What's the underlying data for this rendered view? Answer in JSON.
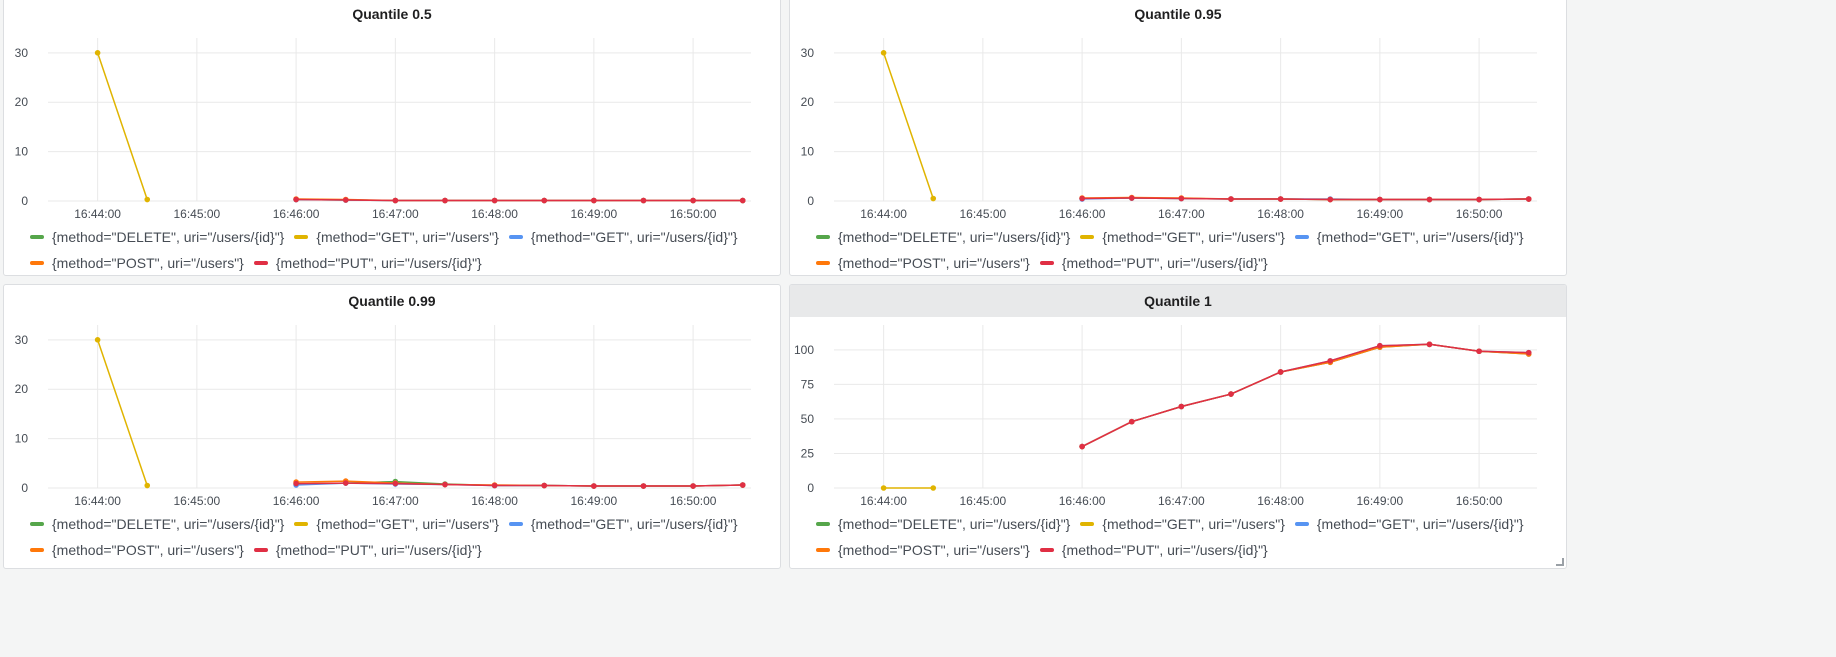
{
  "colors": {
    "series": [
      "#56a64b",
      "#e0b400",
      "#5794f2",
      "#ff780a",
      "#e02f44"
    ],
    "grid": "#e9e9e9",
    "text": "#464c54"
  },
  "legend_labels": [
    "{method=\"DELETE\", uri=\"/users/{id}\"}",
    "{method=\"GET\", uri=\"/users\"}",
    "{method=\"GET\", uri=\"/users/{id}\"}",
    "{method=\"POST\", uri=\"/users\"}",
    "{method=\"PUT\", uri=\"/users/{id}\"}"
  ],
  "chart_data": [
    {
      "type": "line",
      "title": "Quantile 0.5",
      "x_ticks": [
        "16:44:00",
        "16:45:00",
        "16:46:00",
        "16:47:00",
        "16:48:00",
        "16:49:00",
        "16:50:00"
      ],
      "x_range": [
        "16:43:30",
        "16:50:35"
      ],
      "y_ticks": [
        0,
        10,
        20,
        30
      ],
      "ylim": [
        0,
        33
      ],
      "series": [
        {
          "name": "{method=\"DELETE\", uri=\"/users/{id}\"}",
          "x": [
            "16:46:00",
            "16:46:30",
            "16:47:00",
            "16:47:30",
            "16:48:00",
            "16:48:30",
            "16:49:00",
            "16:49:30",
            "16:50:00",
            "16:50:30"
          ],
          "values": [
            0.3,
            0.2,
            0.1,
            0.1,
            0.1,
            0.1,
            0.1,
            0.1,
            0.1,
            0.1
          ]
        },
        {
          "name": "{method=\"GET\", uri=\"/users\"}",
          "x": [
            "16:44:00",
            "16:44:30"
          ],
          "values": [
            30,
            0.3
          ]
        },
        {
          "name": "{method=\"GET\", uri=\"/users/{id}\"}",
          "x": [
            "16:46:00",
            "16:46:30",
            "16:47:00",
            "16:47:30",
            "16:48:00",
            "16:48:30",
            "16:49:00",
            "16:49:30",
            "16:50:00",
            "16:50:30"
          ],
          "values": [
            0.3,
            0.2,
            0.1,
            0.1,
            0.1,
            0.1,
            0.1,
            0.1,
            0.1,
            0.1
          ]
        },
        {
          "name": "{method=\"POST\", uri=\"/users\"}",
          "x": [
            "16:46:00",
            "16:46:30",
            "16:47:00",
            "16:47:30",
            "16:48:00",
            "16:48:30",
            "16:49:00",
            "16:49:30",
            "16:50:00",
            "16:50:30"
          ],
          "values": [
            0.4,
            0.3,
            0.1,
            0.1,
            0.1,
            0.1,
            0.1,
            0.1,
            0.1,
            0.1
          ]
        },
        {
          "name": "{method=\"PUT\", uri=\"/users/{id}\"}",
          "x": [
            "16:46:00",
            "16:46:30",
            "16:47:00",
            "16:47:30",
            "16:48:00",
            "16:48:30",
            "16:49:00",
            "16:49:30",
            "16:50:00",
            "16:50:30"
          ],
          "values": [
            0.3,
            0.2,
            0.1,
            0.1,
            0.1,
            0.1,
            0.1,
            0.1,
            0.1,
            0.1
          ]
        }
      ]
    },
    {
      "type": "line",
      "title": "Quantile 0.95",
      "x_ticks": [
        "16:44:00",
        "16:45:00",
        "16:46:00",
        "16:47:00",
        "16:48:00",
        "16:49:00",
        "16:50:00"
      ],
      "x_range": [
        "16:43:30",
        "16:50:35"
      ],
      "y_ticks": [
        0,
        10,
        20,
        30
      ],
      "ylim": [
        0,
        33
      ],
      "series": [
        {
          "name": "{method=\"DELETE\", uri=\"/users/{id}\"}",
          "x": [
            "16:46:00",
            "16:46:30",
            "16:47:00",
            "16:47:30",
            "16:48:00",
            "16:48:30",
            "16:49:00",
            "16:49:30",
            "16:50:00",
            "16:50:30"
          ],
          "values": [
            0.5,
            0.6,
            0.5,
            0.4,
            0.4,
            0.3,
            0.3,
            0.3,
            0.3,
            0.4
          ]
        },
        {
          "name": "{method=\"GET\", uri=\"/users\"}",
          "x": [
            "16:44:00",
            "16:44:30"
          ],
          "values": [
            30,
            0.5
          ]
        },
        {
          "name": "{method=\"GET\", uri=\"/users/{id}\"}",
          "x": [
            "16:46:00",
            "16:46:30",
            "16:47:00",
            "16:47:30",
            "16:48:00",
            "16:48:30",
            "16:49:00",
            "16:49:30",
            "16:50:00",
            "16:50:30"
          ],
          "values": [
            0.4,
            0.6,
            0.5,
            0.4,
            0.4,
            0.4,
            0.3,
            0.3,
            0.3,
            0.4
          ]
        },
        {
          "name": "{method=\"POST\", uri=\"/users\"}",
          "x": [
            "16:46:00",
            "16:46:30",
            "16:47:00",
            "16:47:30",
            "16:48:00",
            "16:48:30",
            "16:49:00",
            "16:49:30",
            "16:50:00",
            "16:50:30"
          ],
          "values": [
            0.6,
            0.7,
            0.6,
            0.4,
            0.4,
            0.3,
            0.3,
            0.3,
            0.3,
            0.4
          ]
        },
        {
          "name": "{method=\"PUT\", uri=\"/users/{id}\"}",
          "x": [
            "16:46:00",
            "16:46:30",
            "16:47:00",
            "16:47:30",
            "16:48:00",
            "16:48:30",
            "16:49:00",
            "16:49:30",
            "16:50:00",
            "16:50:30"
          ],
          "values": [
            0.5,
            0.6,
            0.5,
            0.4,
            0.4,
            0.3,
            0.3,
            0.3,
            0.3,
            0.4
          ]
        }
      ]
    },
    {
      "type": "line",
      "title": "Quantile 0.99",
      "x_ticks": [
        "16:44:00",
        "16:45:00",
        "16:46:00",
        "16:47:00",
        "16:48:00",
        "16:49:00",
        "16:50:00"
      ],
      "x_range": [
        "16:43:30",
        "16:50:35"
      ],
      "y_ticks": [
        0,
        10,
        20,
        30
      ],
      "ylim": [
        0,
        33
      ],
      "series": [
        {
          "name": "{method=\"DELETE\", uri=\"/users/{id}\"}",
          "x": [
            "16:46:00",
            "16:46:30",
            "16:47:00",
            "16:47:30",
            "16:48:00",
            "16:48:30",
            "16:49:00",
            "16:49:30",
            "16:50:00",
            "16:50:30"
          ],
          "values": [
            0.8,
            1.0,
            1.3,
            0.8,
            0.5,
            0.5,
            0.4,
            0.4,
            0.4,
            0.6
          ]
        },
        {
          "name": "{method=\"GET\", uri=\"/users\"}",
          "x": [
            "16:44:00",
            "16:44:30"
          ],
          "values": [
            30,
            0.5
          ]
        },
        {
          "name": "{method=\"GET\", uri=\"/users/{id}\"}",
          "x": [
            "16:46:00",
            "16:46:30",
            "16:47:00",
            "16:47:30",
            "16:48:00",
            "16:48:30",
            "16:49:00",
            "16:49:30",
            "16:50:00",
            "16:50:30"
          ],
          "values": [
            0.6,
            1.0,
            0.8,
            0.7,
            0.5,
            0.5,
            0.4,
            0.4,
            0.4,
            0.6
          ]
        },
        {
          "name": "{method=\"POST\", uri=\"/users\"}",
          "x": [
            "16:46:00",
            "16:46:30",
            "16:47:00",
            "16:47:30",
            "16:48:00",
            "16:48:30",
            "16:49:00",
            "16:49:30",
            "16:50:00",
            "16:50:30"
          ],
          "values": [
            1.2,
            1.4,
            1.0,
            0.7,
            0.6,
            0.5,
            0.4,
            0.4,
            0.4,
            0.6
          ]
        },
        {
          "name": "{method=\"PUT\", uri=\"/users/{id}\"}",
          "x": [
            "16:46:00",
            "16:46:30",
            "16:47:00",
            "16:47:30",
            "16:48:00",
            "16:48:30",
            "16:49:00",
            "16:49:30",
            "16:50:00",
            "16:50:30"
          ],
          "values": [
            0.9,
            1.0,
            0.9,
            0.7,
            0.5,
            0.5,
            0.4,
            0.4,
            0.4,
            0.6
          ]
        }
      ]
    },
    {
      "type": "line",
      "title": "Quantile 1",
      "x_ticks": [
        "16:44:00",
        "16:45:00",
        "16:46:00",
        "16:47:00",
        "16:48:00",
        "16:49:00",
        "16:50:00"
      ],
      "x_range": [
        "16:43:30",
        "16:50:35"
      ],
      "y_ticks": [
        0,
        25,
        50,
        75,
        100
      ],
      "ylim": [
        0,
        118
      ],
      "series": [
        {
          "name": "{method=\"DELETE\", uri=\"/users/{id}\"}",
          "x": [
            "16:46:00",
            "16:46:30",
            "16:47:00",
            "16:47:30",
            "16:48:00",
            "16:48:30",
            "16:49:00",
            "16:49:30",
            "16:50:00",
            "16:50:30"
          ],
          "values": [
            30,
            48,
            59,
            68,
            84,
            91,
            102,
            104,
            99,
            97
          ]
        },
        {
          "name": "{method=\"GET\", uri=\"/users\"}",
          "x": [
            "16:44:00",
            "16:44:30"
          ],
          "values": [
            0,
            0
          ]
        },
        {
          "name": "{method=\"GET\", uri=\"/users/{id}\"}",
          "x": [
            "16:46:00",
            "16:46:30",
            "16:47:00",
            "16:47:30",
            "16:48:00",
            "16:48:30",
            "16:49:00",
            "16:49:30",
            "16:50:00",
            "16:50:30"
          ],
          "values": [
            30,
            48,
            59,
            68,
            84,
            92,
            103,
            104,
            99,
            98
          ]
        },
        {
          "name": "{method=\"POST\", uri=\"/users\"}",
          "x": [
            "16:46:00",
            "16:46:30",
            "16:47:00",
            "16:47:30",
            "16:48:00",
            "16:48:30",
            "16:49:00",
            "16:49:30",
            "16:50:00",
            "16:50:30"
          ],
          "values": [
            30,
            48,
            59,
            68,
            84,
            91,
            102,
            104,
            99,
            97
          ]
        },
        {
          "name": "{method=\"PUT\", uri=\"/users/{id}\"}",
          "x": [
            "16:46:00",
            "16:46:30",
            "16:47:00",
            "16:47:30",
            "16:48:00",
            "16:48:30",
            "16:49:00",
            "16:49:30",
            "16:50:00",
            "16:50:30"
          ],
          "values": [
            30,
            48,
            59,
            68,
            84,
            92,
            103,
            104,
            99,
            98
          ]
        }
      ]
    }
  ]
}
